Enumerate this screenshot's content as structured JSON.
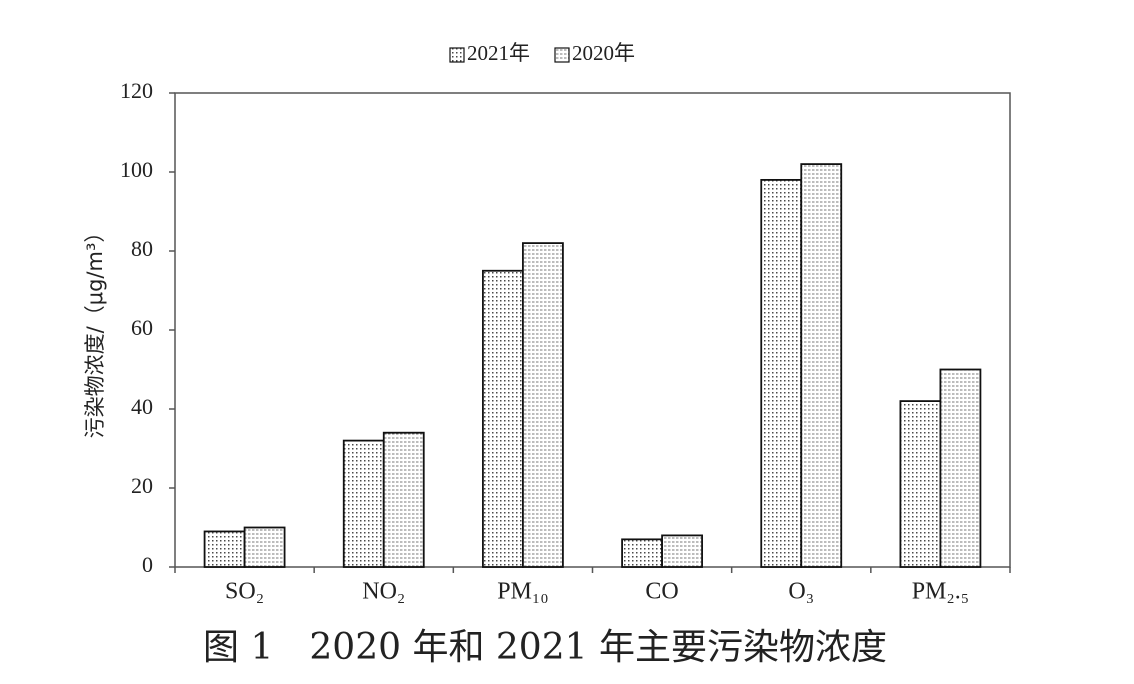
{
  "chart_data": {
    "type": "bar",
    "caption": "图 1　2020 年和 2021 年主要污染物浓度",
    "y_label": "污染物浓度/（μg/m³）",
    "categories": [
      "SO₂",
      "NO₂",
      "PM₁₀",
      "CO",
      "O₃",
      "PM₂.₅"
    ],
    "series": [
      {
        "name": "2021年",
        "color": "#4a4a4a",
        "values": [
          9,
          32,
          75,
          7,
          98,
          42
        ]
      },
      {
        "name": "2020年",
        "color": "#7a7a7a",
        "values": [
          10,
          34,
          82,
          8,
          102,
          50
        ]
      }
    ],
    "ylim": [
      0,
      120
    ],
    "yticks": [
      0,
      20,
      40,
      60,
      80,
      100,
      120
    ],
    "grid": false,
    "legend": "top"
  }
}
